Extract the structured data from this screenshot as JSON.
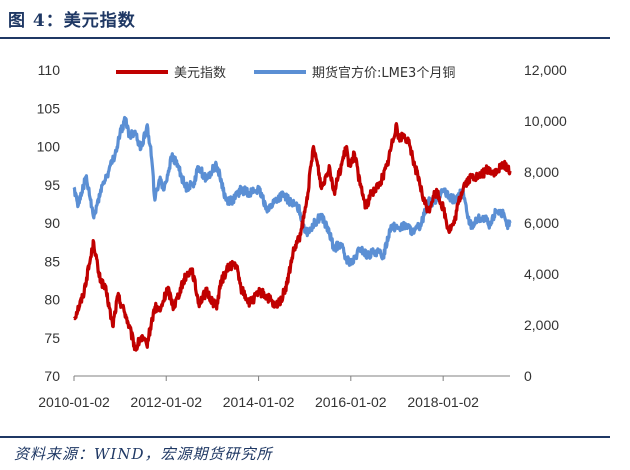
{
  "header": {
    "title": "图 4：美元指数"
  },
  "footer": {
    "source": "资料来源：WIND，宏源期货研究所"
  },
  "chart_data": {
    "type": "line",
    "title": "",
    "x_ticks": [
      "2010-01-02",
      "2012-01-02",
      "2014-01-02",
      "2016-01-02",
      "2018-01-02"
    ],
    "x_range": [
      "2010-01-02",
      "2019-06-15"
    ],
    "y_left": {
      "ticks": [
        "70",
        "75",
        "80",
        "85",
        "90",
        "95",
        "100",
        "105",
        "110"
      ],
      "range": [
        70,
        110
      ]
    },
    "y_right": {
      "ticks": [
        "0",
        "2,000",
        "4,000",
        "6,000",
        "8,000",
        "10,000",
        "12,000"
      ],
      "range": [
        0,
        12000
      ]
    },
    "legend_position": "top",
    "series": [
      {
        "name": "美元指数",
        "axis": "left",
        "color": "#c00000",
        "points": [
          [
            "2010-01-02",
            77.5
          ],
          [
            "2010-03-15",
            80.5
          ],
          [
            "2010-06-07",
            87.5
          ],
          [
            "2010-07-20",
            83.0
          ],
          [
            "2010-09-15",
            81.0
          ],
          [
            "2010-11-04",
            76.5
          ],
          [
            "2010-12-15",
            80.5
          ],
          [
            "2011-02-15",
            78.0
          ],
          [
            "2011-05-04",
            73.5
          ],
          [
            "2011-06-15",
            75.0
          ],
          [
            "2011-08-01",
            74.0
          ],
          [
            "2011-10-04",
            79.0
          ],
          [
            "2011-11-15",
            78.5
          ],
          [
            "2012-01-13",
            81.5
          ],
          [
            "2012-03-01",
            79.0
          ],
          [
            "2012-06-01",
            83.0
          ],
          [
            "2012-07-24",
            84.0
          ],
          [
            "2012-09-15",
            79.5
          ],
          [
            "2012-11-15",
            81.0
          ],
          [
            "2013-02-01",
            79.0
          ],
          [
            "2013-03-15",
            82.5
          ],
          [
            "2013-05-20",
            84.5
          ],
          [
            "2013-07-09",
            84.5
          ],
          [
            "2013-08-15",
            81.5
          ],
          [
            "2013-10-24",
            79.5
          ],
          [
            "2014-01-15",
            81.0
          ],
          [
            "2014-04-01",
            80.0
          ],
          [
            "2014-05-08",
            79.0
          ],
          [
            "2014-07-01",
            80.0
          ],
          [
            "2014-08-15",
            82.0
          ],
          [
            "2014-10-01",
            86.0
          ],
          [
            "2014-12-01",
            88.5
          ],
          [
            "2015-01-15",
            92.5
          ],
          [
            "2015-03-13",
            100.0
          ],
          [
            "2015-04-15",
            97.5
          ],
          [
            "2015-05-15",
            94.5
          ],
          [
            "2015-07-15",
            97.5
          ],
          [
            "2015-08-24",
            94.0
          ],
          [
            "2015-09-15",
            95.5
          ],
          [
            "2015-11-30",
            100.0
          ],
          [
            "2015-12-15",
            97.5
          ],
          [
            "2016-02-01",
            99.0
          ],
          [
            "2016-03-15",
            95.0
          ],
          [
            "2016-05-02",
            92.0
          ],
          [
            "2016-06-15",
            94.0
          ],
          [
            "2016-08-15",
            95.0
          ],
          [
            "2016-10-15",
            97.5
          ],
          [
            "2016-12-28",
            103.0
          ],
          [
            "2017-01-15",
            101.0
          ],
          [
            "2017-03-01",
            101.5
          ],
          [
            "2017-04-15",
            100.0
          ],
          [
            "2017-05-15",
            98.0
          ],
          [
            "2017-07-01",
            95.0
          ],
          [
            "2017-08-01",
            93.0
          ],
          [
            "2017-09-08",
            91.5
          ],
          [
            "2017-10-15",
            93.5
          ],
          [
            "2017-11-15",
            94.0
          ],
          [
            "2018-01-02",
            92.0
          ],
          [
            "2018-02-15",
            89.0
          ],
          [
            "2018-04-01",
            90.0
          ],
          [
            "2018-05-01",
            92.5
          ],
          [
            "2018-06-15",
            95.0
          ],
          [
            "2018-08-15",
            96.0
          ],
          [
            "2018-10-15",
            96.0
          ],
          [
            "2018-12-15",
            97.0
          ],
          [
            "2019-03-01",
            96.5
          ],
          [
            "2019-04-26",
            97.8
          ],
          [
            "2019-06-15",
            96.8
          ]
        ]
      },
      {
        "name": "期货官方价:LME3个月铜",
        "axis": "right",
        "color": "#5b8fd4",
        "points": [
          [
            "2010-01-02",
            7400
          ],
          [
            "2010-02-05",
            6700
          ],
          [
            "2010-04-06",
            7800
          ],
          [
            "2010-06-08",
            6200
          ],
          [
            "2010-08-01",
            7300
          ],
          [
            "2010-10-01",
            8000
          ],
          [
            "2010-12-01",
            8800
          ],
          [
            "2011-01-01",
            9500
          ],
          [
            "2011-02-15",
            10100
          ],
          [
            "2011-03-15",
            9400
          ],
          [
            "2011-05-01",
            9600
          ],
          [
            "2011-06-15",
            8900
          ],
          [
            "2011-08-01",
            9800
          ],
          [
            "2011-09-01",
            9000
          ],
          [
            "2011-10-04",
            6900
          ],
          [
            "2011-11-15",
            7800
          ],
          [
            "2011-12-15",
            7300
          ],
          [
            "2012-02-15",
            8600
          ],
          [
            "2012-04-01",
            8300
          ],
          [
            "2012-06-01",
            7400
          ],
          [
            "2012-08-01",
            7500
          ],
          [
            "2012-09-15",
            8200
          ],
          [
            "2012-11-15",
            7700
          ],
          [
            "2013-02-01",
            8300
          ],
          [
            "2013-03-15",
            7600
          ],
          [
            "2013-04-18",
            6900
          ],
          [
            "2013-06-15",
            6900
          ],
          [
            "2013-08-15",
            7300
          ],
          [
            "2013-10-15",
            7200
          ],
          [
            "2014-01-02",
            7300
          ],
          [
            "2014-03-19",
            6500
          ],
          [
            "2014-05-15",
            6900
          ],
          [
            "2014-07-15",
            7100
          ],
          [
            "2014-09-15",
            6800
          ],
          [
            "2014-11-15",
            6600
          ],
          [
            "2015-01-15",
            5600
          ],
          [
            "2015-02-15",
            5800
          ],
          [
            "2015-05-15",
            6300
          ],
          [
            "2015-07-15",
            5600
          ],
          [
            "2015-08-24",
            5000
          ],
          [
            "2015-10-15",
            5200
          ],
          [
            "2015-11-20",
            4600
          ],
          [
            "2016-01-15",
            4400
          ],
          [
            "2016-03-15",
            5000
          ],
          [
            "2016-05-15",
            4700
          ],
          [
            "2016-07-15",
            4900
          ],
          [
            "2016-09-15",
            4700
          ],
          [
            "2016-11-15",
            5900
          ],
          [
            "2017-01-15",
            5800
          ],
          [
            "2017-03-15",
            5900
          ],
          [
            "2017-05-15",
            5600
          ],
          [
            "2017-07-15",
            6000
          ],
          [
            "2017-09-05",
            6900
          ],
          [
            "2017-10-15",
            6800
          ],
          [
            "2017-12-28",
            7300
          ],
          [
            "2018-02-15",
            7000
          ],
          [
            "2018-04-15",
            6900
          ],
          [
            "2018-06-08",
            7300
          ],
          [
            "2018-07-15",
            6200
          ],
          [
            "2018-08-15",
            5900
          ],
          [
            "2018-10-15",
            6200
          ],
          [
            "2018-12-15",
            6100
          ],
          [
            "2019-01-02",
            5800
          ],
          [
            "2019-02-25",
            6500
          ],
          [
            "2019-04-15",
            6400
          ],
          [
            "2019-05-20",
            5900
          ],
          [
            "2019-06-15",
            6000
          ]
        ]
      }
    ]
  }
}
